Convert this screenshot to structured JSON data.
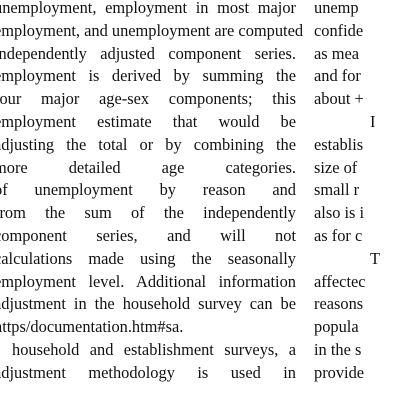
{
  "left_column": {
    "lines": [
      "unemployment, employment in most major",
      "employment, and unemployment are computed",
      "independently adjusted component series.",
      "employment is derived by summing the",
      "four major age-sex components; this",
      "employment estimate that would be",
      "adjusting the total or by combining the",
      "more detailed age categories.",
      "of unemployment by reason and",
      "from the sum of the independently",
      "component series, and will not",
      "calculations made using the seasonally",
      "employment level. Additional information",
      "adjustment in the household survey can be",
      "https/documentation.htm#sa.",
      "household and establishment surveys, a",
      "adjustment methodology is used in"
    ]
  },
  "right_column": {
    "lines": [
      "unemp",
      "confide",
      "as mea",
      "and for",
      "about +",
      "I",
      "establis",
      "size of",
      "small r",
      "also is i",
      "as for c",
      "T",
      "affectec",
      "reasons",
      "popula",
      "in the s",
      "provide"
    ]
  }
}
